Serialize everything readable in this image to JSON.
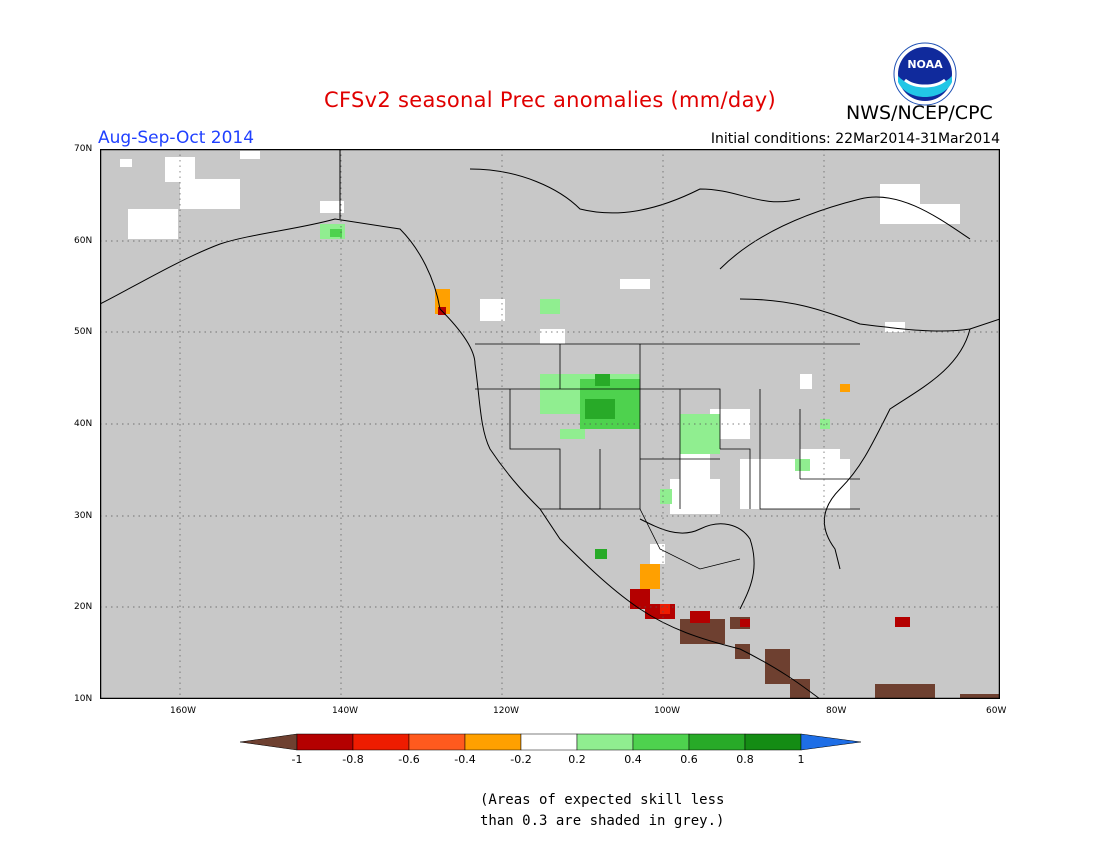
{
  "title": "CFSv2 seasonal Prec anomalies (mm/day)",
  "period": "Aug-Sep-Oct 2014",
  "initial_conditions": "Initial conditions: 22Mar2014-31Mar2014",
  "organization": "NWS/NCEP/CPC",
  "logo_icon": "noaa-logo-icon",
  "logo_text": "NOAA",
  "map": {
    "lon_range": [
      -172,
      -60
    ],
    "lat_range": [
      10,
      70
    ],
    "lat_ticks": [
      "10N",
      "20N",
      "30N",
      "40N",
      "50N",
      "60N",
      "70N"
    ],
    "lon_ticks": [
      "160W",
      "140W",
      "120W",
      "100W",
      "80W",
      "60W"
    ],
    "grid": "dotted",
    "background": "#c8c8c8"
  },
  "legend": {
    "labels": [
      "-1",
      "-0.8",
      "-0.6",
      "-0.4",
      "-0.2",
      "0.2",
      "0.4",
      "0.6",
      "0.8",
      "1"
    ],
    "colors": [
      "#6e4030",
      "#b40000",
      "#ee1c00",
      "#ff5a1e",
      "#ffa000",
      "#ffffff",
      "#90ee90",
      "#4ed24e",
      "#28aa28",
      "#148c14",
      "#1e6ee6"
    ]
  },
  "note": [
    "(Areas of expected skill less",
    "than 0.3 are shaded in grey.)"
  ]
}
